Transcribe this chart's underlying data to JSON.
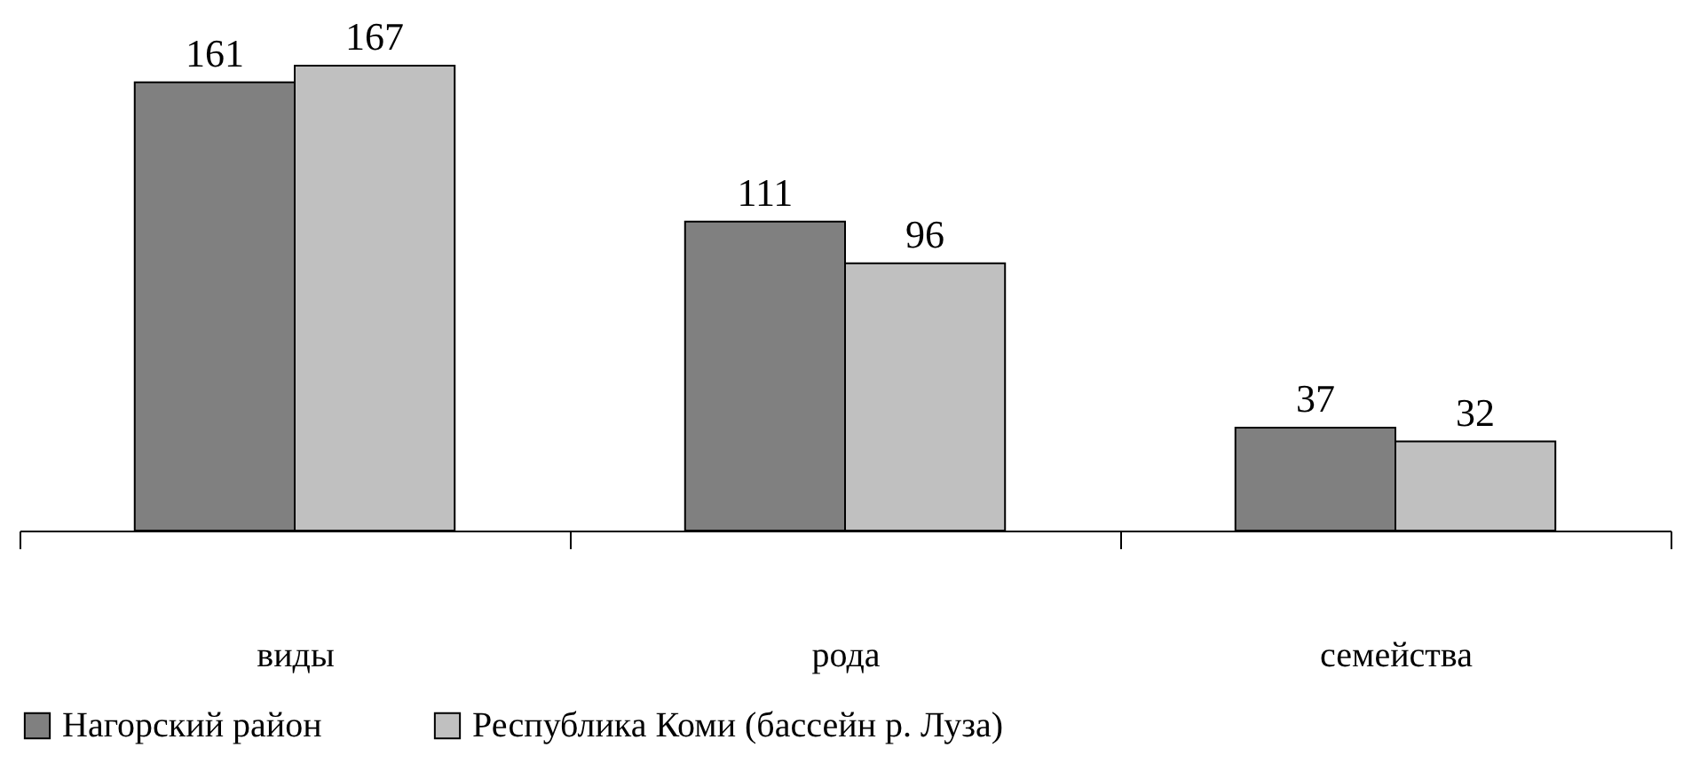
{
  "chart_data": {
    "type": "bar",
    "categories": [
      "виды",
      "рода",
      "семейства"
    ],
    "series": [
      {
        "name": "Нагорский район",
        "color": "#808080",
        "values": [
          161,
          111,
          37
        ]
      },
      {
        "name": "Республика Коми (бассейн р. Луза)",
        "color": "#c0c0c0",
        "values": [
          167,
          96,
          32
        ]
      }
    ],
    "data_labels": true,
    "legend": "bottom"
  }
}
